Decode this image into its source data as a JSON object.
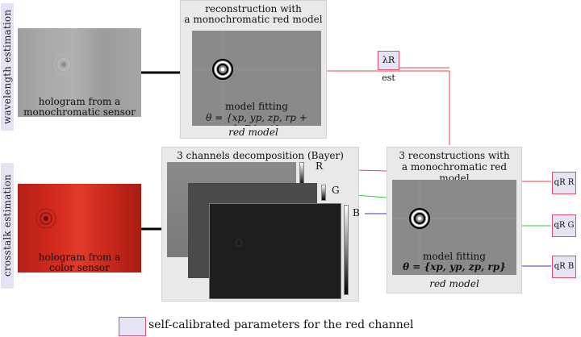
{
  "side_labels": {
    "top": "wavelength estimation",
    "bottom": "crosstalk estimation"
  },
  "top_hologram_caption": [
    "hologram from a",
    "monochromatic sensor"
  ],
  "top_recon": {
    "title": [
      "reconstruction with",
      "a monochromatic red model"
    ],
    "caption_line1": "model fitting",
    "formula": "θ = {xp, yp, zp, rp + λ_R^est}",
    "model_label": "red model"
  },
  "lambda_param": "λR est",
  "bottom_hologram_caption": [
    "hologram from a",
    "color sensor"
  ],
  "decomp_panel": {
    "title": "3 channels decomposition (Bayer)",
    "channels": [
      "R",
      "G",
      "B"
    ]
  },
  "bottom_recon": {
    "title": [
      "3 reconstructions with",
      "a monochromatic red model"
    ],
    "caption_line1": "model fitting",
    "formula": "θ = {xp, yp, zp, rp}",
    "model_label": "red model"
  },
  "q_params": [
    "qR R",
    "qR G",
    "qR B"
  ],
  "legend": "self-calibrated parameters for the red channel",
  "colors": {
    "red_line": "#e8404a",
    "green_line": "#33cc33",
    "blue_line": "#3333cc",
    "param_fill": "#e7e3f5"
  }
}
